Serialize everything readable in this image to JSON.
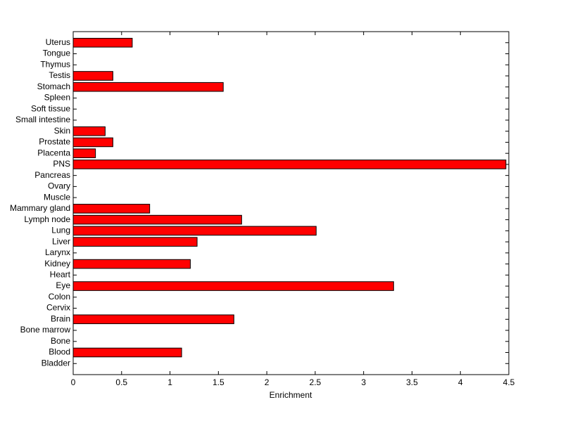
{
  "chart_data": {
    "type": "barh",
    "x_label": "Enrichment",
    "categories": [
      "Bladder",
      "Blood",
      "Bone",
      "Bone marrow",
      "Brain",
      "Cervix",
      "Colon",
      "Eye",
      "Heart",
      "Kidney",
      "Larynx",
      "Liver",
      "Lung",
      "Lymph node",
      "Mammary gland",
      "Muscle",
      "Ovary",
      "Pancreas",
      "PNS",
      "Placenta",
      "Prostate",
      "Skin",
      "Small intestine",
      "Soft tissue",
      "Spleen",
      "Stomach",
      "Testis",
      "Thymus",
      "Tongue",
      "Uterus"
    ],
    "values": [
      0,
      1.12,
      0,
      0,
      1.66,
      0,
      0,
      3.31,
      0,
      1.21,
      0,
      1.28,
      2.51,
      1.74,
      0.79,
      0,
      0,
      0,
      4.47,
      0.23,
      0.41,
      0.33,
      0,
      0,
      0,
      1.55,
      0.41,
      0,
      0,
      0.61
    ],
    "color": "#ff0000",
    "xlim": [
      0,
      4.5
    ],
    "xticks": [
      0,
      0.5,
      1,
      1.5,
      2,
      2.5,
      3,
      3.5,
      4,
      4.5
    ],
    "grid": false
  }
}
